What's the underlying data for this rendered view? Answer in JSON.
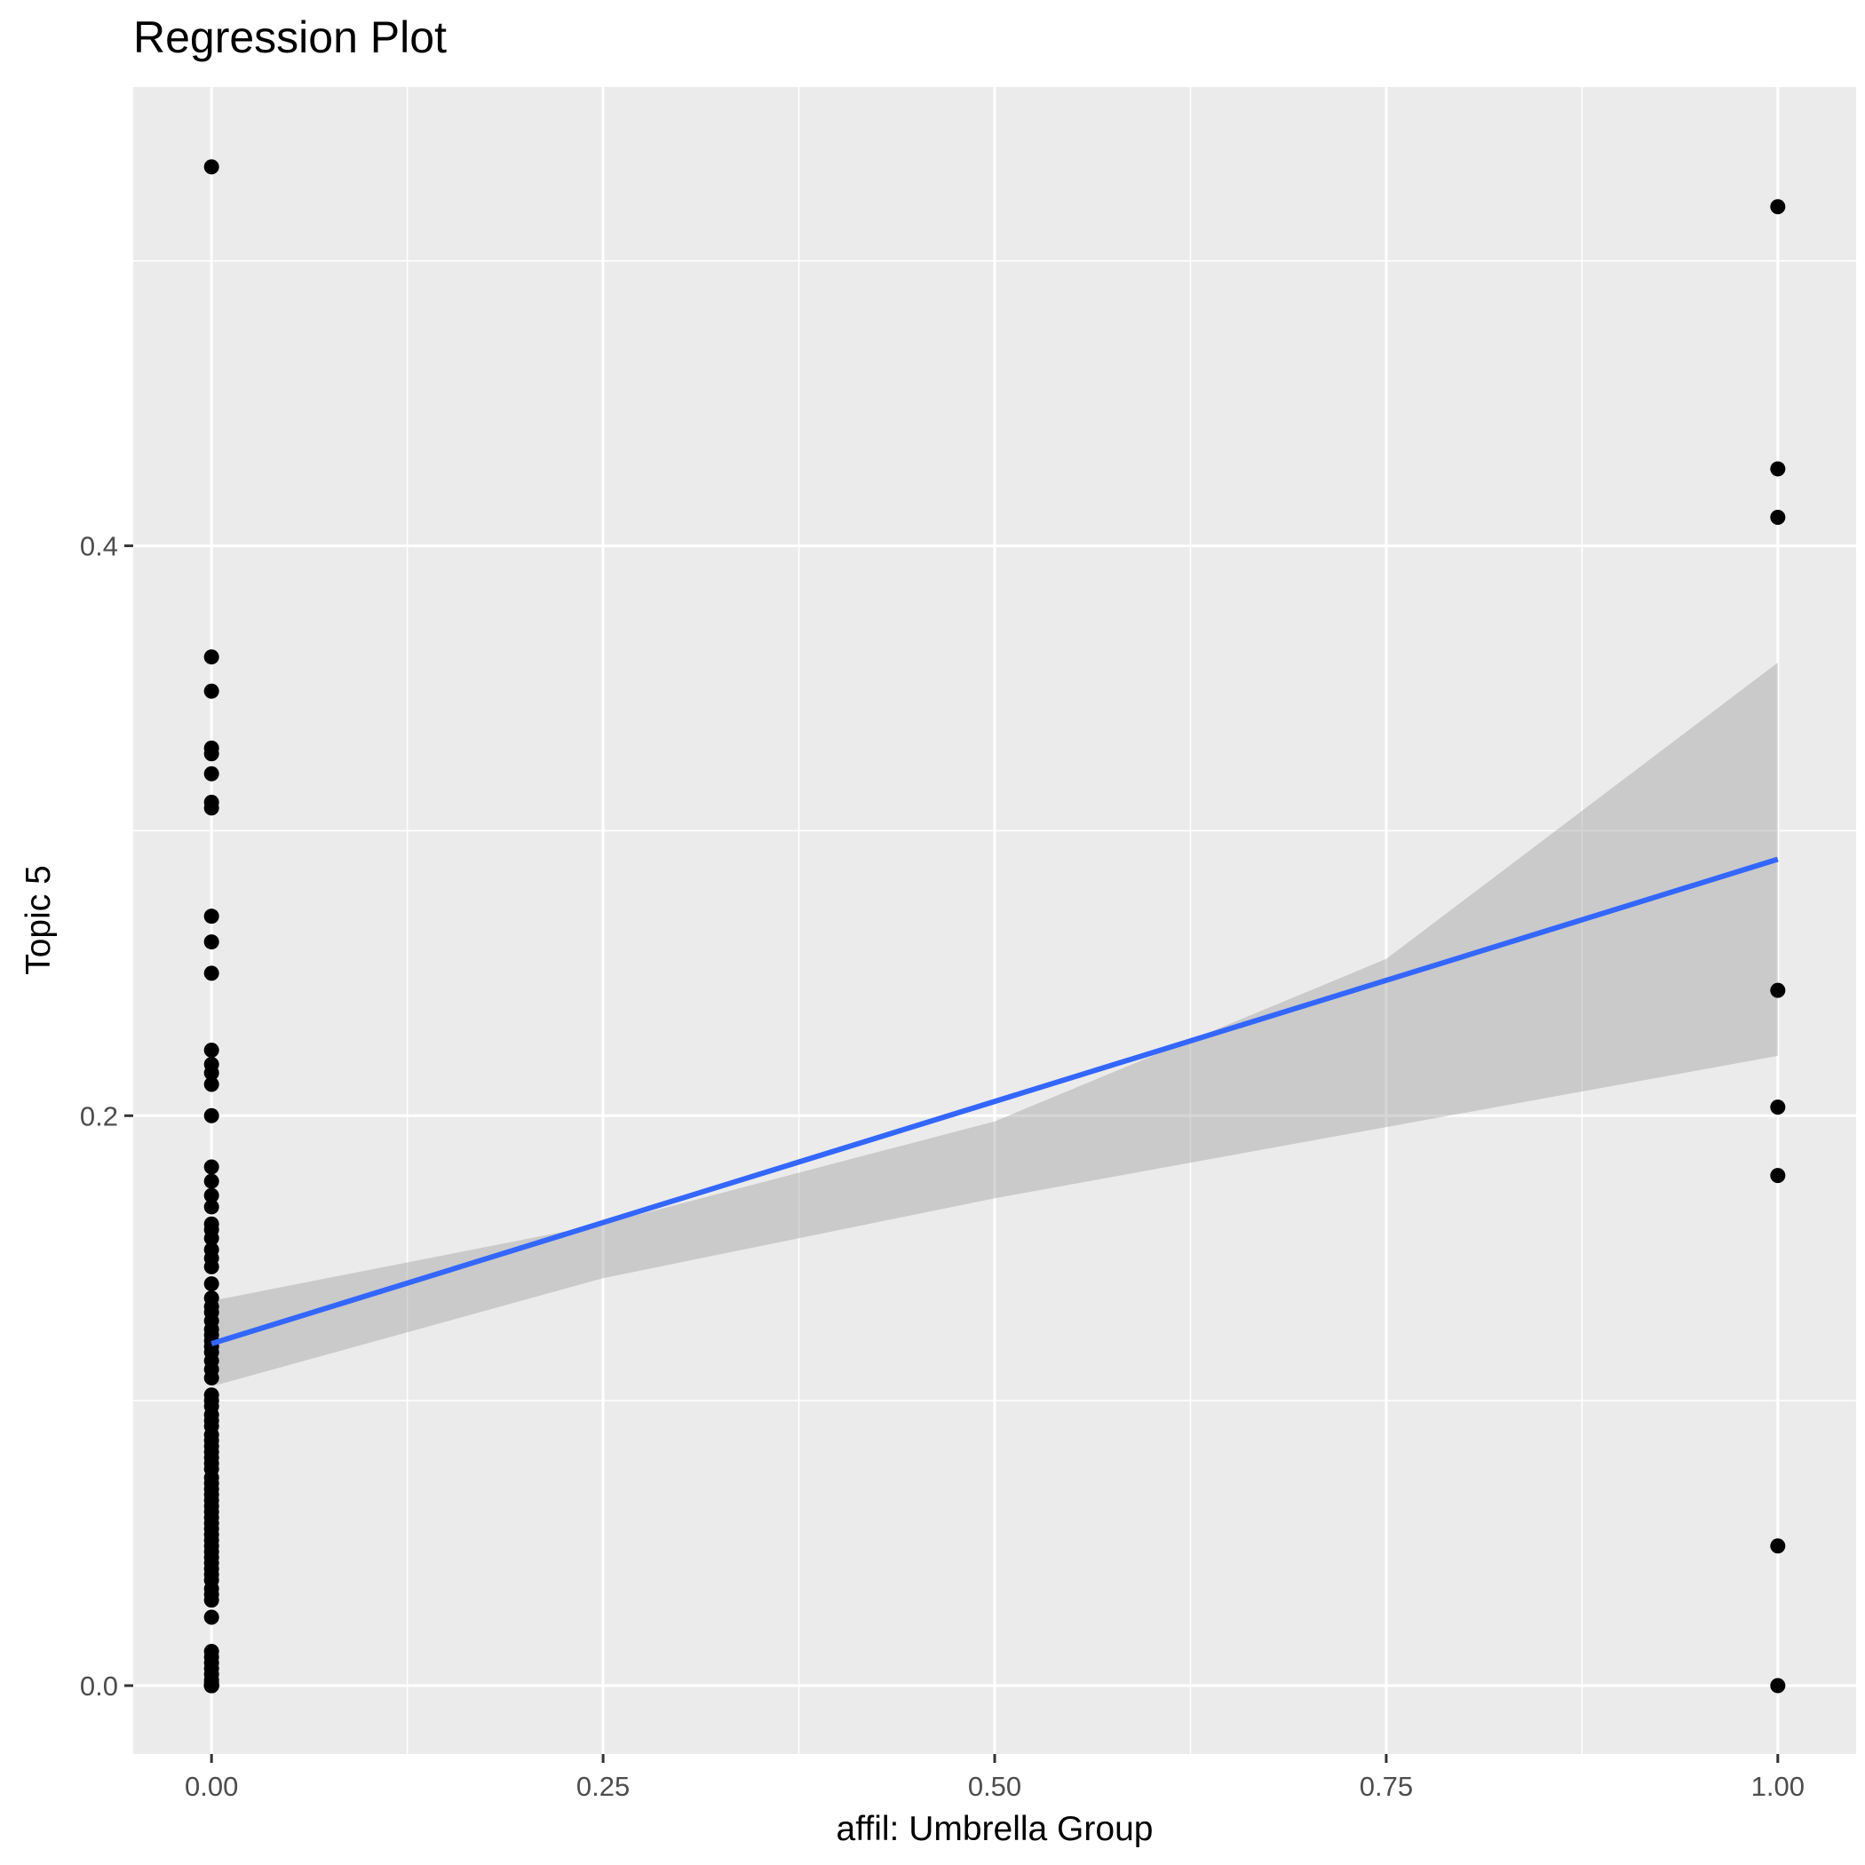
{
  "chart_data": {
    "type": "scatter",
    "title": "Regression Plot",
    "xlabel": "affil: Umbrella Group",
    "ylabel": "Topic 5",
    "xlim": [
      -0.05,
      1.05
    ],
    "ylim": [
      -0.024,
      0.561
    ],
    "x_ticks": [
      0.0,
      0.25,
      0.5,
      0.75,
      1.0
    ],
    "x_tick_labels": [
      "0.00",
      "0.25",
      "0.50",
      "0.75",
      "1.00"
    ],
    "y_ticks": [
      0.0,
      0.2,
      0.4
    ],
    "y_tick_labels": [
      "0.0",
      "0.2",
      "0.4"
    ],
    "grid": true,
    "colors": {
      "panel_background": "#ebebeb",
      "grid": "#ffffff",
      "points": "#000000",
      "regression_line": "#3366ff",
      "confidence_band": "#c4c4c4"
    },
    "series": [
      {
        "x": [
          0,
          0,
          0,
          0,
          0,
          0,
          0,
          0,
          0,
          0,
          0,
          0,
          0,
          0,
          0,
          0,
          0,
          0,
          0,
          0,
          0,
          0,
          0,
          0,
          0,
          0,
          0,
          0,
          0,
          0,
          0,
          0,
          0,
          0,
          0,
          0,
          0,
          0,
          0,
          0,
          0,
          0,
          0,
          0,
          0,
          0,
          0,
          0,
          0,
          0,
          0,
          0,
          0,
          0,
          0,
          0,
          0,
          0,
          0,
          0,
          0,
          0,
          0,
          0,
          0,
          0,
          0,
          0,
          0,
          0,
          0,
          0,
          0,
          0,
          0,
          0,
          0,
          0,
          0,
          0,
          0,
          0,
          0,
          0,
          0,
          0,
          0,
          0,
          0,
          0,
          0,
          0,
          0,
          0,
          1,
          1,
          1,
          1,
          1,
          1,
          1,
          1
        ],
        "y": [
          0.533,
          0.361,
          0.349,
          0.329,
          0.327,
          0.32,
          0.31,
          0.308,
          0.27,
          0.261,
          0.25,
          0.223,
          0.218,
          0.215,
          0.211,
          0.2,
          0.182,
          0.177,
          0.172,
          0.168,
          0.162,
          0.16,
          0.157,
          0.153,
          0.15,
          0.147,
          0.141,
          0.136,
          0.133,
          0.131,
          0.128,
          0.125,
          0.123,
          0.121,
          0.119,
          0.117,
          0.114,
          0.111,
          0.108,
          0.102,
          0.1,
          0.098,
          0.095,
          0.093,
          0.091,
          0.088,
          0.086,
          0.084,
          0.082,
          0.08,
          0.078,
          0.076,
          0.073,
          0.071,
          0.069,
          0.067,
          0.065,
          0.063,
          0.061,
          0.059,
          0.057,
          0.055,
          0.053,
          0.051,
          0.049,
          0.047,
          0.045,
          0.043,
          0.041,
          0.039,
          0.037,
          0.034,
          0.032,
          0.03,
          0.024,
          0.012,
          0.01,
          0.008,
          0.006,
          0.004,
          0.002,
          0.001,
          0.0,
          0.0,
          0.0,
          0.0,
          0.0,
          0.0,
          0.0,
          0.0,
          0.0,
          0.0,
          0.0,
          0.0,
          0.519,
          0.427,
          0.41,
          0.244,
          0.203,
          0.179,
          0.049,
          0.0
        ]
      }
    ],
    "regression": {
      "x": [
        0.0,
        1.0
      ],
      "y": [
        0.12,
        0.29
      ],
      "ci_x": [
        0.0,
        0.25,
        0.5,
        0.75,
        1.0
      ],
      "ci_lower": [
        0.105,
        0.143,
        0.171,
        0.196,
        0.221
      ],
      "ci_upper": [
        0.135,
        0.162,
        0.198,
        0.255,
        0.359
      ]
    }
  }
}
